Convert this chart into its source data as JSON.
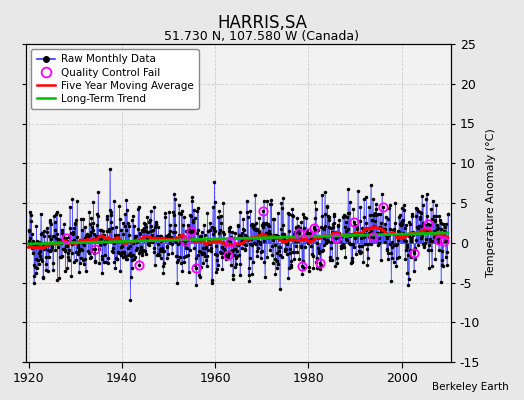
{
  "title": "HARRIS,SA",
  "subtitle": "51.730 N, 107.580 W (Canada)",
  "attribution": "Berkeley Earth",
  "ylabel": "Temperature Anomaly (°C)",
  "xlim": [
    1919.5,
    2010.5
  ],
  "ylim": [
    -15,
    25
  ],
  "yticks": [
    -15,
    -10,
    -5,
    0,
    5,
    10,
    15,
    20,
    25
  ],
  "xticks": [
    1920,
    1940,
    1960,
    1980,
    2000
  ],
  "seed": 42,
  "start_year": 1920,
  "end_year": 2009,
  "bg_color": "#e8e8e8",
  "plot_bg_color": "#f2f2f2",
  "line_color": "#3333ff",
  "marker_color": "#000000",
  "ma_color": "#ff0000",
  "trend_color": "#00bb00",
  "qc_color": "#ff00ff",
  "grid_color": "#cccccc",
  "legend_loc": "upper left"
}
